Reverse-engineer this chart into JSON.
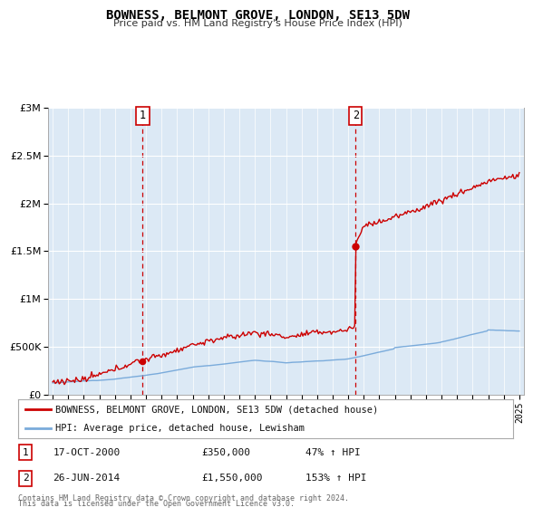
{
  "title": "BOWNESS, BELMONT GROVE, LONDON, SE13 5DW",
  "subtitle": "Price paid vs. HM Land Registry's House Price Index (HPI)",
  "sale1_date": "17-OCT-2000",
  "sale1_price": 350000,
  "sale1_pct": "47% ↑ HPI",
  "sale2_date": "26-JUN-2014",
  "sale2_price": 1550000,
  "sale2_pct": "153% ↑ HPI",
  "legend_house": "BOWNESS, BELMONT GROVE, LONDON, SE13 5DW (detached house)",
  "legend_hpi": "HPI: Average price, detached house, Lewisham",
  "footnote1": "Contains HM Land Registry data © Crown copyright and database right 2024.",
  "footnote2": "This data is licensed under the Open Government Licence v3.0.",
  "house_color": "#cc0000",
  "hpi_color": "#7aabdb",
  "vline_color": "#cc0000",
  "shade_color": "#dce9f5",
  "bg_color": "#dce9f5",
  "plot_bg": "#ffffff",
  "ylim_max": 3000000,
  "sale1_x": 2000.79,
  "sale2_x": 2014.48
}
